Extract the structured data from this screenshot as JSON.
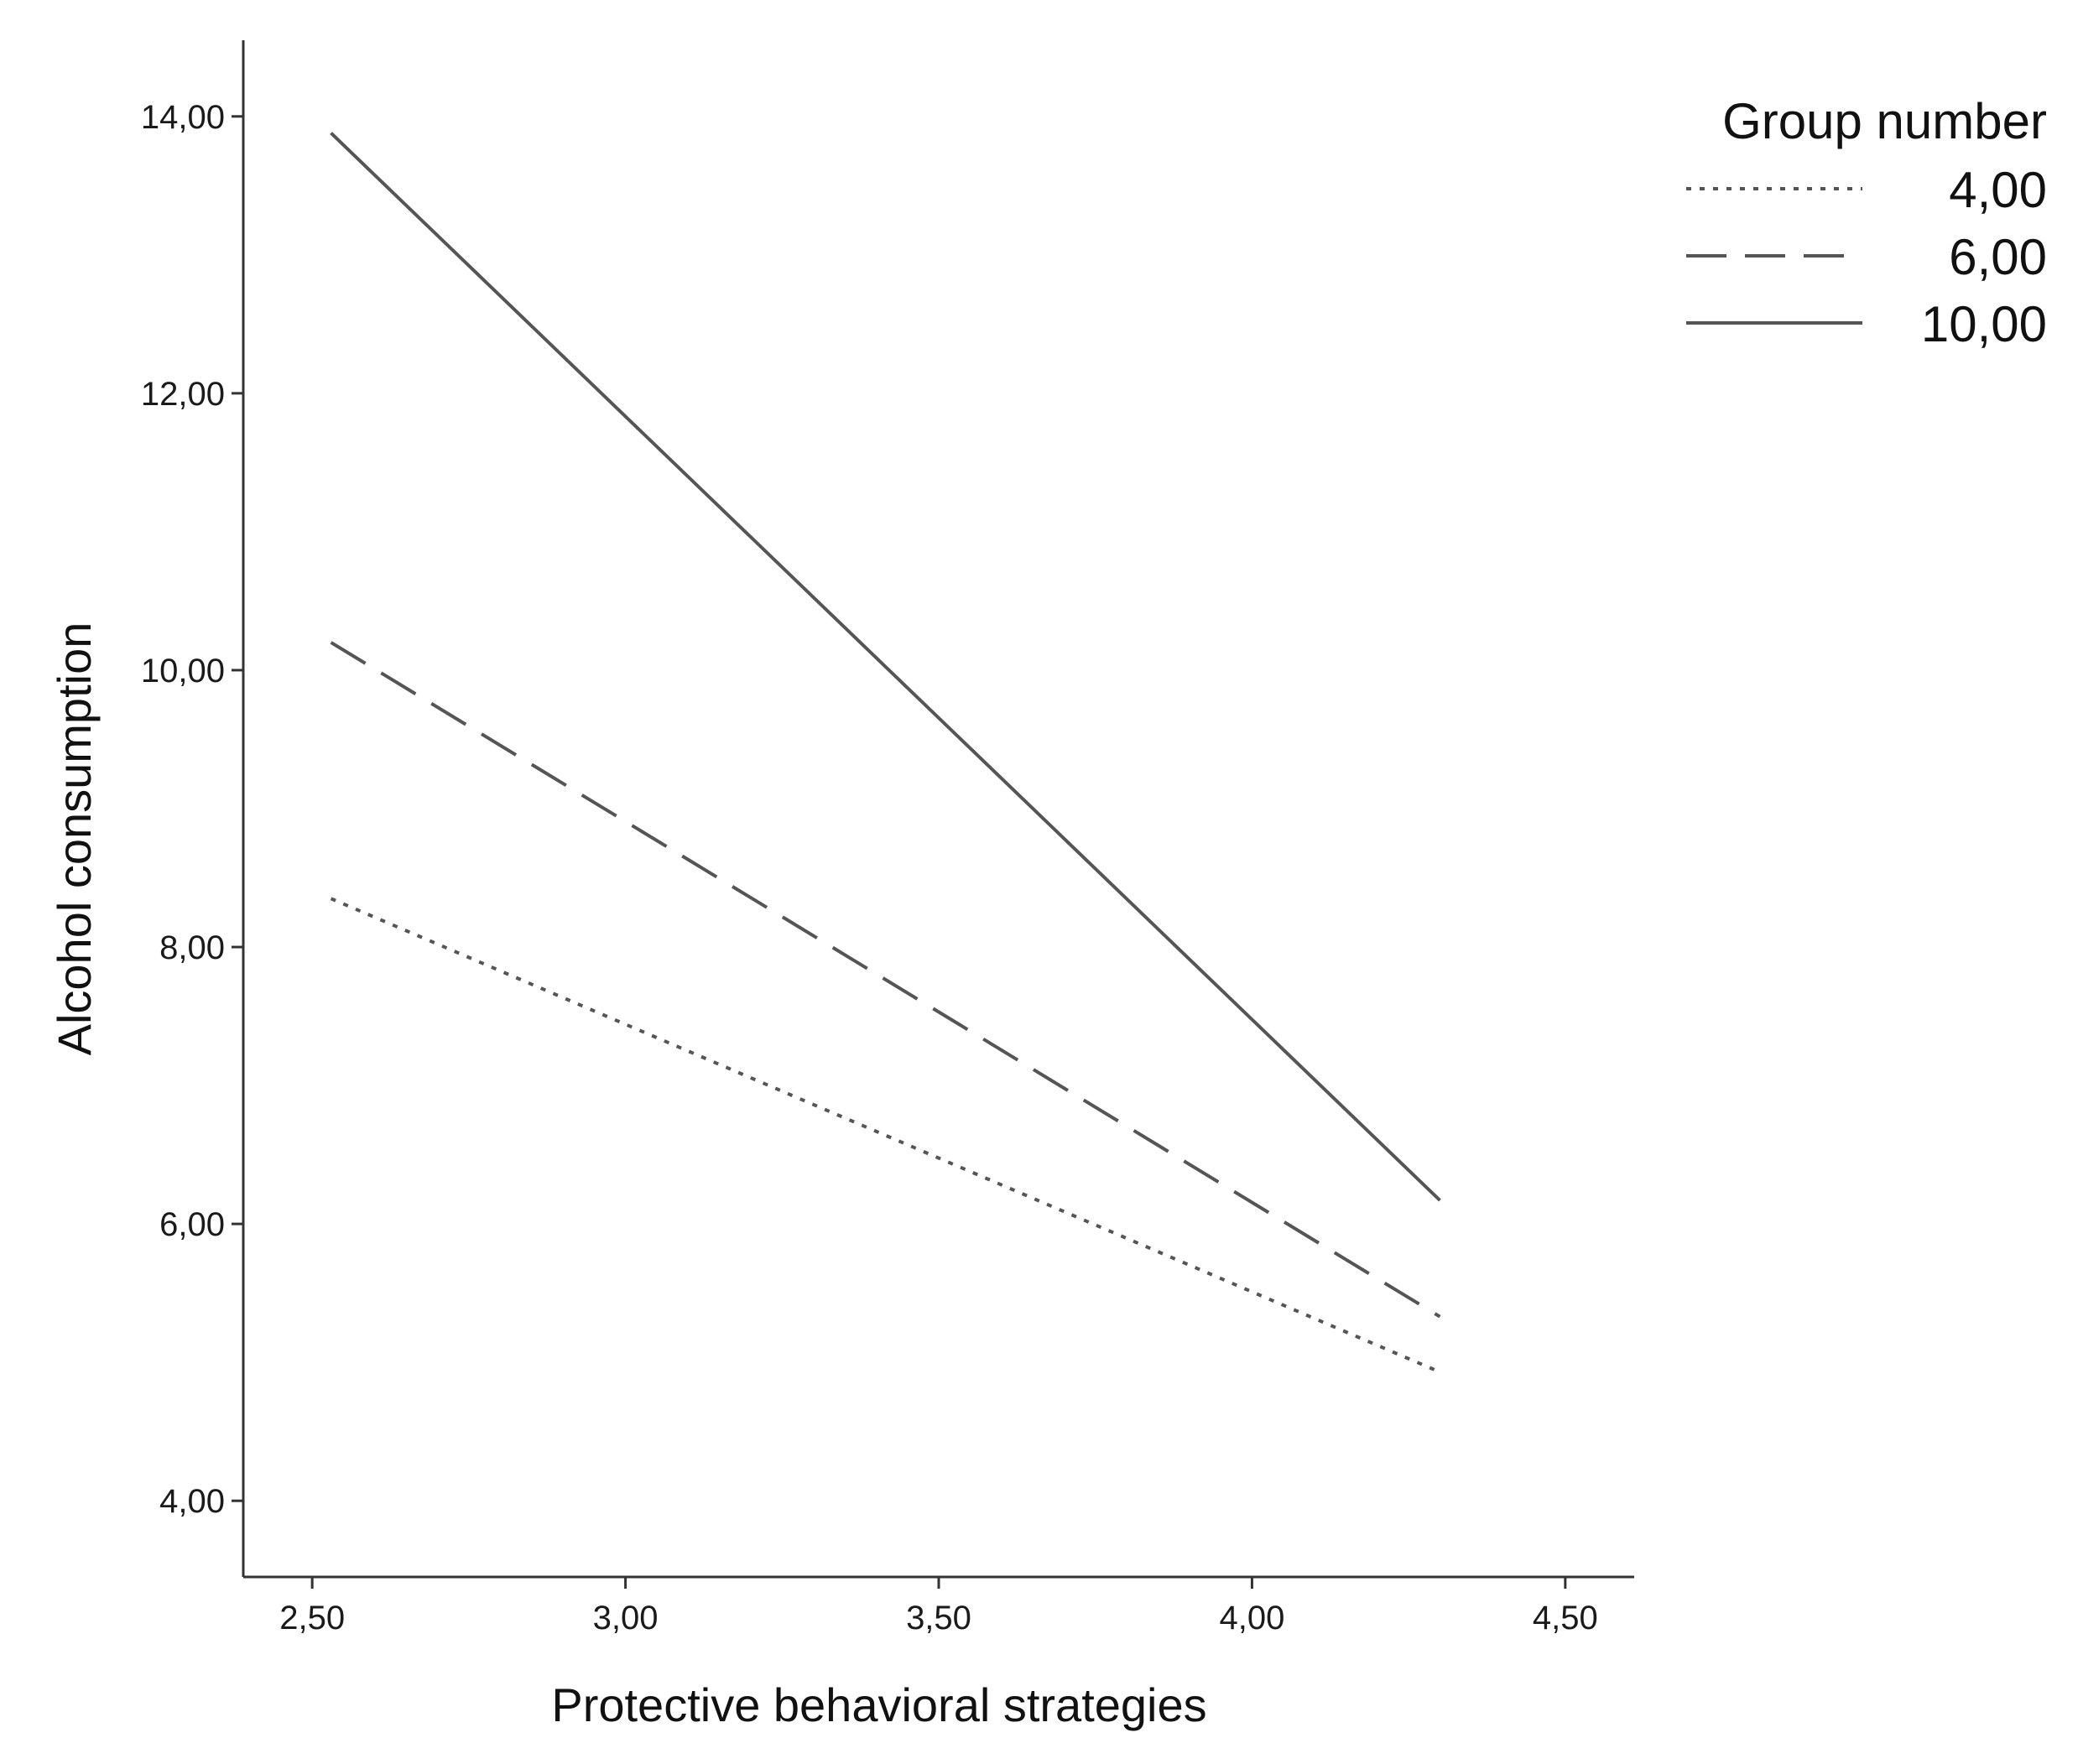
{
  "chart_data": {
    "type": "line",
    "xlabel": "Protective behavioral strategies",
    "ylabel": "Alcohol consumption",
    "xlim": [
      2.39,
      4.61
    ],
    "ylim": [
      3.45,
      14.55
    ],
    "x_ticks": [
      2.5,
      3.0,
      3.5,
      4.0,
      4.5
    ],
    "x_tick_labels": [
      "2,50",
      "3,00",
      "3,50",
      "4,00",
      "4,50"
    ],
    "y_ticks": [
      4,
      6,
      8,
      10,
      12,
      14
    ],
    "y_tick_labels": [
      "4,00",
      "6,00",
      "8,00",
      "10,00",
      "12,00",
      "14,00"
    ],
    "grid": false,
    "legend": {
      "title": "Group number",
      "placement": "top-right"
    },
    "series": [
      {
        "name": "4,00",
        "style": "dotted",
        "color": "#555555",
        "x": [
          2.53,
          4.3
        ],
        "y": [
          8.35,
          4.93
        ]
      },
      {
        "name": "6,00",
        "style": "dashed",
        "color": "#555555",
        "x": [
          2.53,
          4.3
        ],
        "y": [
          10.2,
          5.33
        ]
      },
      {
        "name": "10,00",
        "style": "solid",
        "color": "#555555",
        "x": [
          2.53,
          4.3
        ],
        "y": [
          13.88,
          6.17
        ]
      }
    ]
  }
}
